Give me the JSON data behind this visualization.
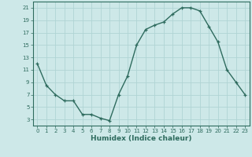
{
  "x": [
    0,
    1,
    2,
    3,
    4,
    5,
    6,
    7,
    8,
    9,
    10,
    11,
    12,
    13,
    14,
    15,
    16,
    17,
    18,
    19,
    20,
    21,
    22,
    23
  ],
  "y": [
    12,
    8.5,
    7,
    6,
    6,
    3.8,
    3.8,
    3.2,
    2.8,
    7,
    10,
    15,
    17.5,
    18.2,
    18.7,
    20,
    21,
    21,
    20.5,
    18,
    15.5,
    11,
    9,
    7
  ],
  "line_color": "#2e6b5e",
  "marker": "+",
  "marker_size": 3,
  "linewidth": 1.0,
  "bg_color": "#cde8e8",
  "grid_color": "#b0d4d4",
  "title": "",
  "xlabel": "Humidex (Indice chaleur)",
  "ylabel": "",
  "xlim": [
    -0.5,
    23.5
  ],
  "ylim": [
    2,
    22
  ],
  "yticks": [
    3,
    5,
    7,
    9,
    11,
    13,
    15,
    17,
    19,
    21
  ],
  "xticks": [
    0,
    1,
    2,
    3,
    4,
    5,
    6,
    7,
    8,
    9,
    10,
    11,
    12,
    13,
    14,
    15,
    16,
    17,
    18,
    19,
    20,
    21,
    22,
    23
  ],
  "tick_color": "#2e6b5e",
  "label_color": "#2e6b5e",
  "tick_fontsize": 5.0,
  "xlabel_fontsize": 6.5,
  "axis_color": "#2e6b5e",
  "markeredgewidth": 0.9
}
